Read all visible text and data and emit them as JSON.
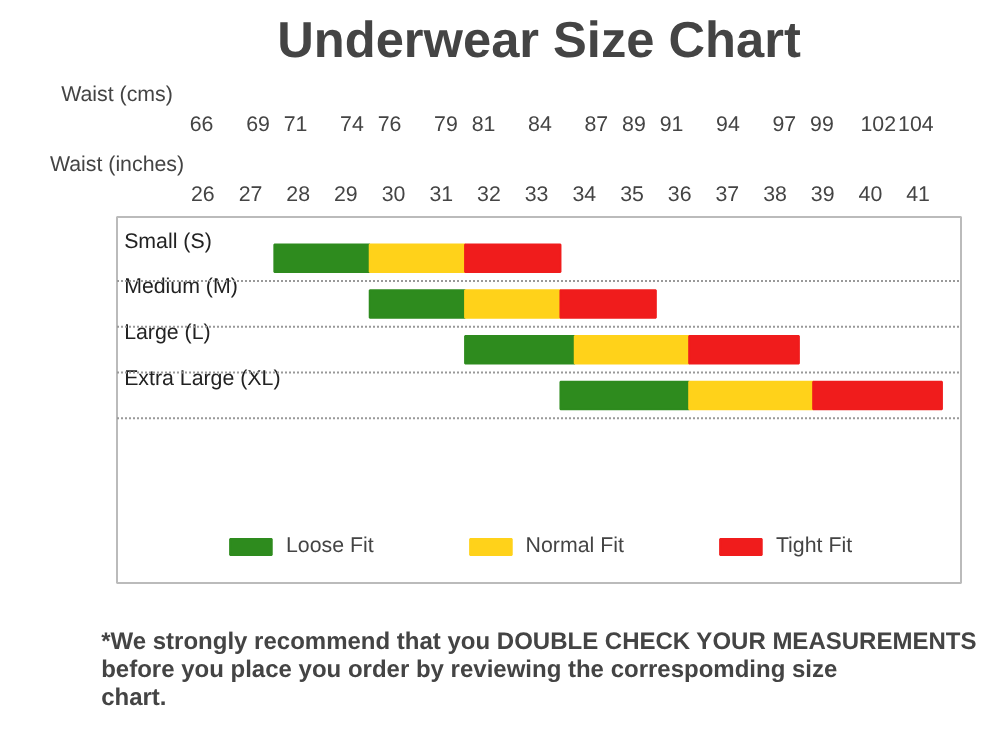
{
  "chart_data": {
    "type": "bar",
    "orientation": "horizontal",
    "title": "Underwear Size Chart",
    "xlabel": "Waist (inches)",
    "x2label": "Waist (cms)",
    "categories": [
      "Small (S)",
      "Medium (M)",
      "Large (L)",
      "Extra Large (XL)"
    ],
    "series": [
      {
        "name": "Loose Fit",
        "color": "#2e8b1e",
        "base": [
          27.5,
          29.5,
          31.5,
          33.5
        ],
        "values": [
          2,
          2,
          2.3,
          2.7
        ]
      },
      {
        "name": "Normal Fit",
        "color": "#ffd21a",
        "base": [
          29.5,
          31.5,
          33.8,
          36.2
        ],
        "values": [
          2,
          2,
          2.4,
          2.6
        ]
      },
      {
        "name": "Tight Fit",
        "color": "#f01c1c",
        "base": [
          31.5,
          33.5,
          36.2,
          38.8
        ],
        "values": [
          2,
          2,
          2.3,
          2.7
        ]
      }
    ],
    "xlim": [
      24.2,
      41.9
    ],
    "xticks": [
      26,
      27,
      28,
      29,
      30,
      31,
      32,
      33,
      34,
      35,
      36,
      37,
      38,
      39,
      40,
      41
    ],
    "x2lim": [
      61.5,
      106.4
    ],
    "x2ticks": [
      66,
      69,
      71,
      74,
      76,
      79,
      81,
      84,
      87,
      89,
      91,
      94,
      97,
      99,
      102,
      104
    ],
    "grid": "y",
    "legend": "bottom",
    "annotations": [
      "*We strongly recommend that you DOUBLE CHECK YOUR MEASUREMENTS before you place you order by reviewing the correspomding size chart."
    ]
  }
}
